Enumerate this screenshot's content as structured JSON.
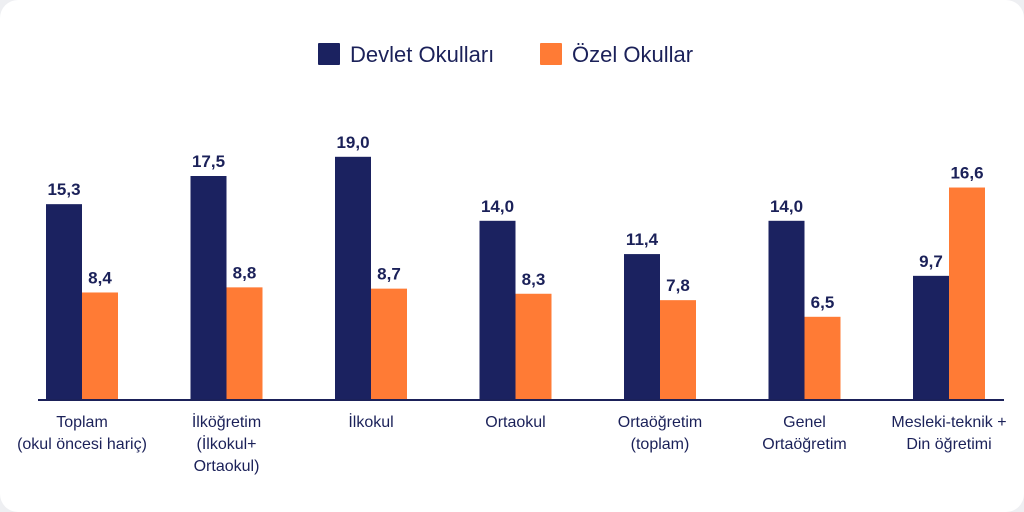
{
  "colors": {
    "series1": "#1b2260",
    "series2": "#ff7b35",
    "text": "#1b2159",
    "axis": "#1b2159"
  },
  "chart_data": {
    "type": "bar",
    "categories": [
      [
        "Toplam",
        "(okul öncesi hariç)"
      ],
      [
        "İlköğretim",
        "(İlkokul+",
        "Ortaokul)"
      ],
      [
        "İlkokul"
      ],
      [
        "Ortaokul"
      ],
      [
        "Ortaöğretim",
        "(toplam)"
      ],
      [
        "Genel",
        "Ortaöğretim"
      ],
      [
        "Mesleki-teknik +",
        "Din öğretimi"
      ]
    ],
    "series": [
      {
        "name": "Devlet Okulları",
        "values": [
          15.3,
          17.5,
          19.0,
          14.0,
          11.4,
          14.0,
          9.7
        ],
        "labels": [
          "15,3",
          "17,5",
          "19,0",
          "14,0",
          "11,4",
          "14,0",
          "9,7"
        ]
      },
      {
        "name": "Özel Okullar",
        "values": [
          8.4,
          8.8,
          8.7,
          8.3,
          7.8,
          6.5,
          16.6
        ],
        "labels": [
          "8,4",
          "8,8",
          "8,7",
          "8,3",
          "7,8",
          "6,5",
          "16,6"
        ]
      }
    ],
    "ylim": [
      0,
      20
    ],
    "legend_position": "top-center",
    "grid": false
  }
}
